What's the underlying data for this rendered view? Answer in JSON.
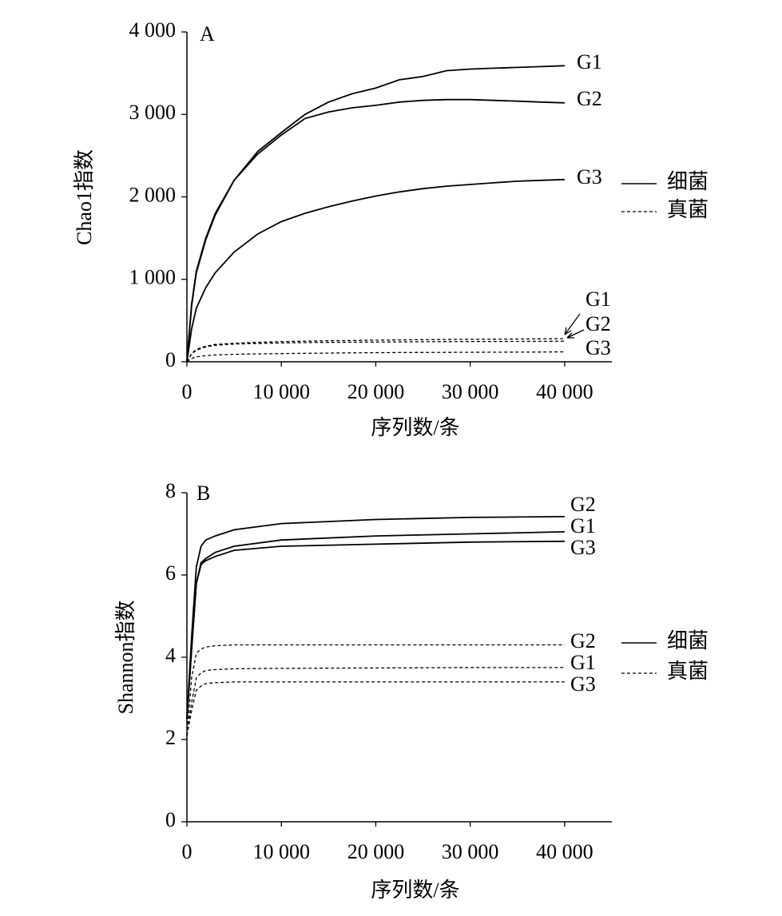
{
  "chart_data": [
    {
      "type": "line",
      "panel_label": "A",
      "x_label": "序列数/条",
      "y_label": "Chao1指数",
      "x": [
        0,
        500,
        1000,
        2000,
        3000,
        5000,
        7500,
        10000,
        12500,
        15000,
        17500,
        20000,
        22500,
        25000,
        27500,
        30000,
        32500,
        35000,
        37500,
        40000
      ],
      "xlim": [
        0,
        45000
      ],
      "xticks": [
        0,
        {
          "value": 10000,
          "label": "10 000"
        },
        {
          "value": 20000,
          "label": "20 000"
        },
        {
          "value": 30000,
          "label": "30 000"
        },
        {
          "value": 40000,
          "label": "40 000"
        }
      ],
      "ylim": [
        0,
        4000
      ],
      "yticks": [
        0,
        {
          "value": 1000,
          "label": "1 000"
        },
        {
          "value": 2000,
          "label": "2 000"
        },
        {
          "value": 3000,
          "label": "3 000"
        },
        {
          "value": 4000,
          "label": "4 000"
        }
      ],
      "legend": [
        {
          "label": "细菌",
          "dash": "solid"
        },
        {
          "label": "真菌",
          "dash": "dashed"
        }
      ],
      "series": [
        {
          "name": "G1",
          "dash": "solid",
          "color": "#000000",
          "values": [
            0,
            700,
            1100,
            1500,
            1800,
            2200,
            2550,
            2780,
            3000,
            3150,
            3250,
            3320,
            3420,
            3460,
            3530,
            3550,
            3560,
            3570,
            3580,
            3590
          ]
        },
        {
          "name": "G2",
          "dash": "solid",
          "color": "#000000",
          "values": [
            0,
            680,
            1080,
            1480,
            1780,
            2200,
            2520,
            2750,
            2950,
            3030,
            3080,
            3110,
            3150,
            3170,
            3180,
            3180,
            3170,
            3160,
            3150,
            3140
          ]
        },
        {
          "name": "G3",
          "dash": "solid",
          "color": "#000000",
          "values": [
            0,
            400,
            650,
            900,
            1080,
            1330,
            1550,
            1700,
            1800,
            1880,
            1950,
            2010,
            2060,
            2100,
            2130,
            2150,
            2170,
            2190,
            2200,
            2210
          ]
        },
        {
          "name": "G1",
          "dash": "dashed",
          "color": "#000000",
          "values": [
            0,
            100,
            150,
            190,
            210,
            225,
            235,
            245,
            250,
            255,
            258,
            262,
            265,
            268,
            270,
            272,
            274,
            276,
            278,
            280
          ]
        },
        {
          "name": "G2",
          "dash": "dashed",
          "color": "#000000",
          "values": [
            0,
            95,
            140,
            180,
            200,
            215,
            222,
            228,
            232,
            235,
            237,
            239,
            241,
            243,
            244,
            245,
            246,
            247,
            248,
            250
          ]
        },
        {
          "name": "G3",
          "dash": "dashed",
          "color": "#000000",
          "values": [
            0,
            40,
            60,
            75,
            82,
            90,
            96,
            100,
            103,
            106,
            108,
            110,
            112,
            113,
            114,
            115,
            116,
            117,
            118,
            120
          ]
        }
      ]
    },
    {
      "type": "line",
      "panel_label": "B",
      "x_label": "序列数/条",
      "y_label": "Shannon指数",
      "x": [
        0,
        500,
        1000,
        1500,
        2000,
        3000,
        5000,
        10000,
        20000,
        30000,
        40000
      ],
      "xlim": [
        0,
        45000
      ],
      "xticks": [
        0,
        {
          "value": 10000,
          "label": "10 000"
        },
        {
          "value": 20000,
          "label": "20 000"
        },
        {
          "value": 30000,
          "label": "30 000"
        },
        {
          "value": 40000,
          "label": "40 000"
        }
      ],
      "ylim": [
        0,
        8
      ],
      "yticks": [
        0,
        2,
        4,
        6,
        8
      ],
      "legend": [
        {
          "label": "细菌",
          "dash": "solid"
        },
        {
          "label": "真菌",
          "dash": "dashed"
        }
      ],
      "series": [
        {
          "name": "G2",
          "dash": "solid",
          "color": "#000000",
          "values": [
            2.5,
            4.5,
            6.2,
            6.7,
            6.85,
            6.95,
            7.1,
            7.25,
            7.35,
            7.4,
            7.42
          ]
        },
        {
          "name": "G1",
          "dash": "solid",
          "color": "#000000",
          "values": [
            2.5,
            4.2,
            5.8,
            6.3,
            6.4,
            6.55,
            6.7,
            6.85,
            6.95,
            7.0,
            7.05
          ]
        },
        {
          "name": "G3",
          "dash": "solid",
          "color": "#000000",
          "values": [
            2.5,
            4.2,
            5.8,
            6.25,
            6.35,
            6.45,
            6.6,
            6.7,
            6.75,
            6.8,
            6.82
          ]
        },
        {
          "name": "G2",
          "dash": "dashed",
          "color": "#000000",
          "values": [
            2.1,
            3.5,
            4.1,
            4.2,
            4.25,
            4.28,
            4.3,
            4.3,
            4.3,
            4.3,
            4.3
          ]
        },
        {
          "name": "G1",
          "dash": "dashed",
          "color": "#000000",
          "values": [
            2.1,
            2.9,
            3.5,
            3.62,
            3.68,
            3.7,
            3.72,
            3.73,
            3.74,
            3.75,
            3.75
          ]
        },
        {
          "name": "G3",
          "dash": "dashed",
          "color": "#000000",
          "values": [
            2.1,
            2.7,
            3.2,
            3.3,
            3.36,
            3.38,
            3.4,
            3.4,
            3.4,
            3.4,
            3.4
          ]
        }
      ]
    }
  ]
}
